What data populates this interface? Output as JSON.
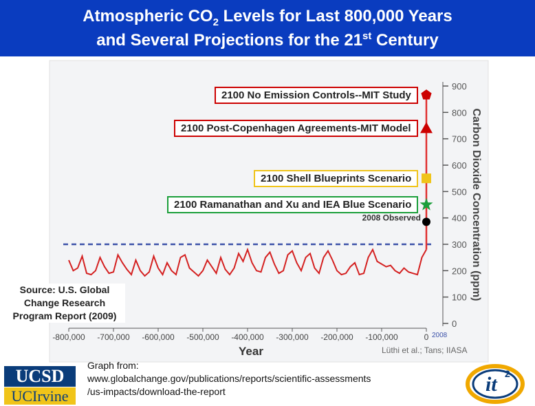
{
  "header": {
    "title_line1_a": "Atmospheric CO",
    "title_line1_sub": "2",
    "title_line1_b": " Levels for Last 800,000 Years",
    "title_line2_a": "and Several Projections for the 21",
    "title_line2_sup": "st",
    "title_line2_b": " Century"
  },
  "chart_data": {
    "type": "line",
    "xlabel": "Year",
    "ylabel": "Carbon Dioxide Concentration (ppm)",
    "xlim": [
      -800000,
      0
    ],
    "ylim": [
      0,
      900
    ],
    "x_ticks": [
      "-800,000",
      "-700,000",
      "-600,000",
      "-500,000",
      "-400,000",
      "-300,000",
      "-200,000",
      "-100,000",
      "0"
    ],
    "y_ticks": [
      0,
      100,
      200,
      300,
      400,
      500,
      600,
      700,
      800,
      900
    ],
    "x_tick_values": [
      -800000,
      -700000,
      -600000,
      -500000,
      -400000,
      -300000,
      -200000,
      -100000,
      0
    ],
    "reference_line": 300,
    "observed_label": "2008 Observed",
    "axis_marker_label": "2008",
    "series": [
      {
        "x": [
          -800000,
          -790000,
          -780000,
          -770000,
          -760000,
          -750000,
          -740000,
          -730000,
          -720000,
          -710000,
          -700000,
          -690000,
          -680000,
          -670000,
          -660000,
          -650000,
          -640000,
          -630000,
          -620000,
          -610000,
          -600000,
          -590000,
          -580000,
          -570000,
          -560000,
          -550000,
          -540000,
          -530000,
          -520000,
          -510000,
          -500000,
          -490000,
          -480000,
          -470000,
          -460000,
          -450000,
          -440000,
          -430000,
          -420000,
          -410000,
          -400000,
          -390000,
          -380000,
          -370000,
          -360000,
          -350000,
          -340000,
          -330000,
          -320000,
          -310000,
          -300000,
          -290000,
          -280000,
          -270000,
          -260000,
          -250000,
          -240000,
          -230000,
          -220000,
          -210000,
          -200000,
          -190000,
          -180000,
          -170000,
          -160000,
          -150000,
          -140000,
          -130000,
          -120000,
          -110000,
          -100000,
          -90000,
          -80000,
          -70000,
          -60000,
          -50000,
          -40000,
          -30000,
          -20000,
          -10000,
          0
        ],
        "values": [
          240,
          200,
          210,
          255,
          190,
          185,
          200,
          250,
          215,
          190,
          195,
          260,
          230,
          205,
          185,
          240,
          200,
          180,
          195,
          255,
          210,
          185,
          230,
          200,
          185,
          250,
          260,
          210,
          195,
          180,
          200,
          240,
          215,
          190,
          250,
          205,
          185,
          210,
          265,
          235,
          280,
          230,
          200,
          195,
          250,
          270,
          225,
          190,
          200,
          260,
          275,
          230,
          200,
          250,
          265,
          210,
          190,
          250,
          275,
          240,
          200,
          185,
          190,
          215,
          230,
          185,
          190,
          250,
          280,
          235,
          225,
          215,
          220,
          200,
          190,
          210,
          195,
          190,
          185,
          250,
          280
        ]
      }
    ],
    "projections": [
      {
        "label": "2100 No Emission Controls--MIT Study",
        "value": 866,
        "marker": "pentagon",
        "color": "#cc0000"
      },
      {
        "label": "2100 Post-Copenhagen Agreements-MIT Model",
        "value": 740,
        "marker": "triangle",
        "color": "#cc0000"
      },
      {
        "label": "2100 Shell Blueprints Scenario",
        "value": 550,
        "marker": "square",
        "color": "#f0c419"
      },
      {
        "label": "2100 Ramanathan and Xu and IEA Blue Scenario",
        "value": 450,
        "marker": "star",
        "color": "#1b9e3a"
      },
      {
        "label": "2008 Observed",
        "value": 385,
        "marker": "circle",
        "color": "#000000"
      }
    ]
  },
  "source_note": {
    "line1": "Source: U.S. Global",
    "line2": "Change Research",
    "line3": "Program Report (2009)"
  },
  "footer": {
    "line1": "Graph from:",
    "line2": "www.globalchange.gov/publications/reports/scientific-assessments",
    "line3": "/us-impacts/download-the-report"
  },
  "credit": "Lüthi et al.; Tans; IIASA",
  "logos": {
    "ucsd": "UCSD",
    "uci": "UCIrvine",
    "it2_main": "it",
    "it2_sup": "2"
  },
  "colors": {
    "title_bg": "#0a3cbf",
    "series_line": "#d42020",
    "reference_line": "#3a50a8",
    "ucsd_blue": "#0a3c7a",
    "uci_gold": "#f0c419"
  }
}
